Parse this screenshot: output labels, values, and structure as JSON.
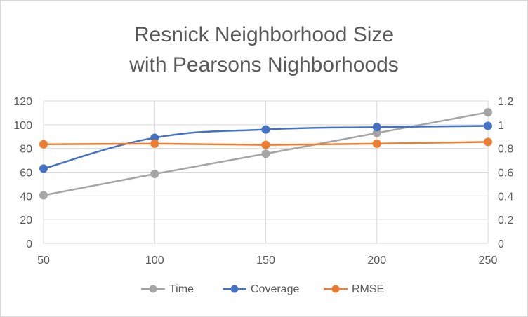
{
  "chart_data": {
    "type": "line",
    "title": "Resnick Neighborhood Size with Pearsons Nighborhoods",
    "title_lines": [
      "Resnick Neighborhood Size",
      "with Pearsons Nighborhoods"
    ],
    "x": [
      50,
      100,
      150,
      200,
      250
    ],
    "x_tick_labels": [
      "50",
      "100",
      "150",
      "200",
      "250"
    ],
    "ylim_left": [
      0,
      120
    ],
    "y_left_ticks": [
      "0",
      "20",
      "40",
      "60",
      "80",
      "100",
      "120"
    ],
    "ylim_right": [
      0,
      1.2
    ],
    "y_right_ticks": [
      "0",
      "0.2",
      "0.4",
      "0.6",
      "0.8",
      "1",
      "1.2"
    ],
    "grid": true,
    "legend_position": "bottom",
    "series": [
      {
        "name": "Time",
        "axis": "left",
        "color": "#a5a5a5",
        "smooth": false,
        "values": [
          40.5,
          58.5,
          75.5,
          93,
          110.5
        ]
      },
      {
        "name": "Coverage",
        "axis": "left",
        "color": "#4472c4",
        "smooth": true,
        "values": [
          63,
          89,
          96,
          98,
          99
        ]
      },
      {
        "name": "RMSE",
        "axis": "right",
        "color": "#ed7d31",
        "smooth": false,
        "values": [
          0.835,
          0.84,
          0.83,
          0.84,
          0.855
        ]
      }
    ]
  }
}
